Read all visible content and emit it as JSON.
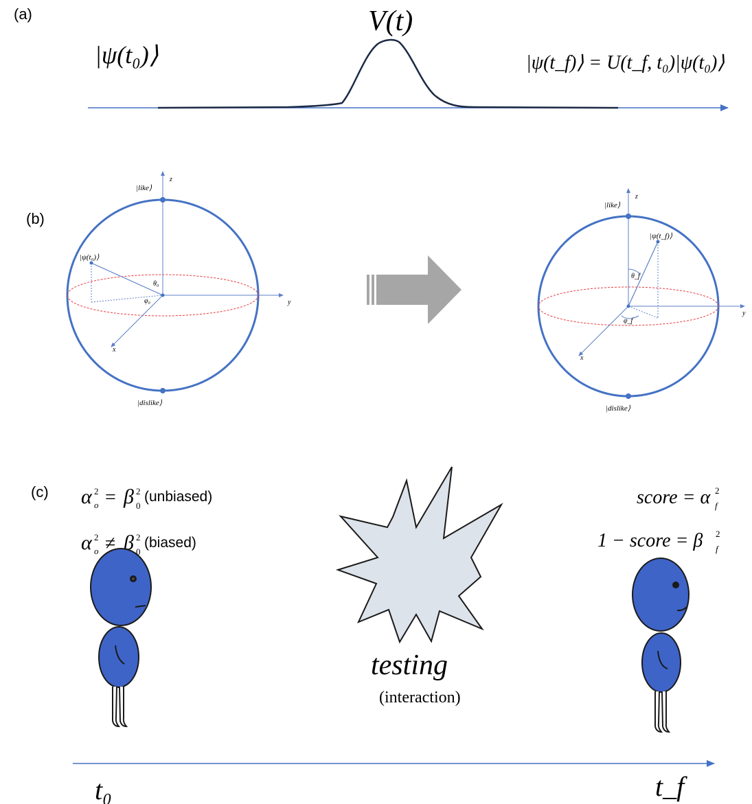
{
  "panels": {
    "a": {
      "label": "(a)",
      "initial_state": "|ψ(t₀)⟩",
      "potential": "V(t)",
      "final_state": "|ψ(t_f)⟩ = U(t_f, t₀)|ψ(t₀)⟩"
    },
    "b": {
      "label": "(b)",
      "left_sphere": {
        "top_state": "|like⟩",
        "bottom_state": "|dislike⟩",
        "state_label": "|ψ(t₀)⟩",
        "polar_angle": "θ₀",
        "azimuth_angle": "φ₀",
        "axis_z": "z",
        "axis_y": "y",
        "axis_x": "x"
      },
      "right_sphere": {
        "top_state": "|like⟩",
        "bottom_state": "|dislike⟩",
        "state_label": "|ψ(t_f)⟩",
        "polar_angle": "θ_f",
        "azimuth_angle": "φ_f",
        "axis_z": "z",
        "axis_y": "y",
        "axis_x": "x"
      }
    },
    "c": {
      "label": "(c)",
      "unbiased_text": "(unbiased)",
      "biased_text": "(biased)",
      "score_text": "score = α",
      "one_minus_score_text": "1 − score = β",
      "testing": "testing",
      "interaction": "(interaction)",
      "time_start": "t₀",
      "time_end": "t_f"
    }
  },
  "colors": {
    "axis_blue": "#4472c4",
    "sphere_blue": "#4472c4",
    "equator_red": "#e8383d",
    "figure_fill": "#3e64c8",
    "burst_fill": "#dde3ea",
    "arrow_gray": "#a6a6a6",
    "pulse": "#1c2a45"
  }
}
